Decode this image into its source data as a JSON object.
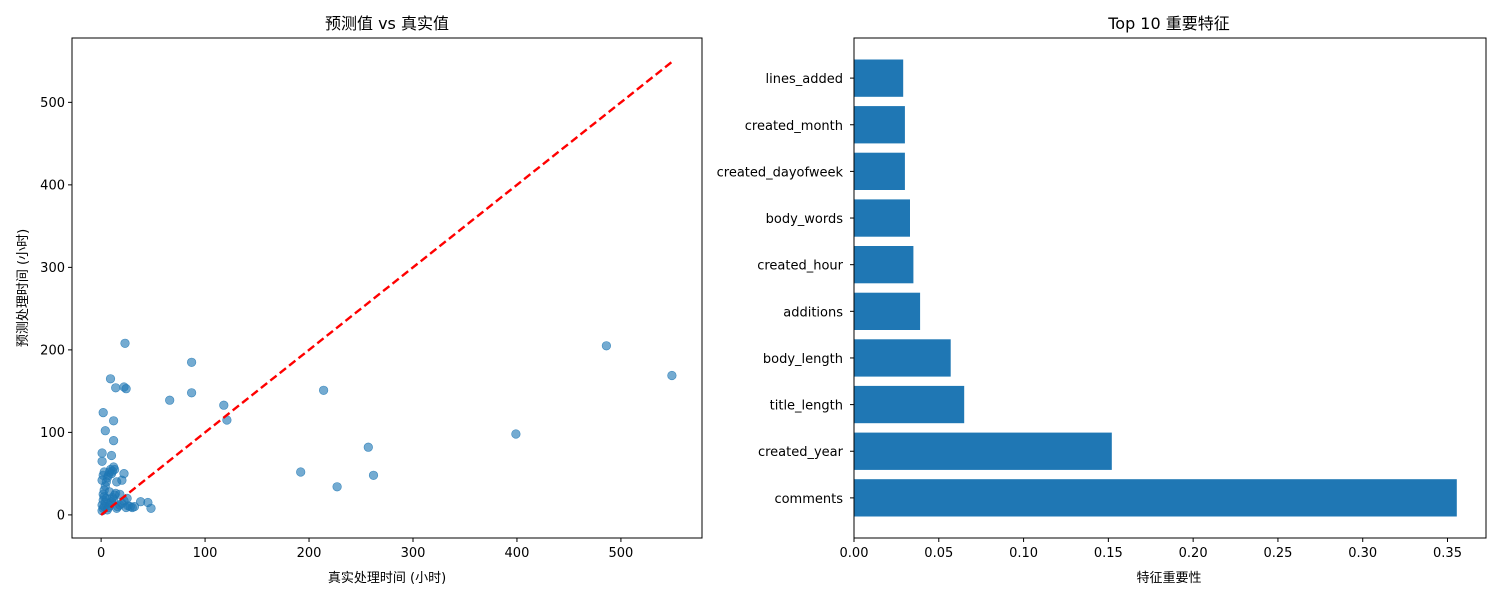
{
  "chart_data": [
    {
      "type": "scatter",
      "title": "预测值 vs 真实值",
      "xlabel": "真实处理时间 (小时)",
      "ylabel": "预测处理时间 (小时)",
      "xlim": [
        -28,
        578
      ],
      "ylim": [
        -28,
        578
      ],
      "xticks": [
        0,
        100,
        200,
        300,
        400,
        500
      ],
      "yticks": [
        0,
        100,
        200,
        300,
        400,
        500
      ],
      "grid": false,
      "colors": {
        "points": "#1f77b4",
        "reference_line": "#ff0000"
      },
      "series": [
        {
          "points": [
            [
              1,
              5
            ],
            [
              2,
              8
            ],
            [
              3,
              10
            ],
            [
              1,
              12
            ],
            [
              4,
              15
            ],
            [
              2,
              18
            ],
            [
              5,
              20
            ],
            [
              3,
              22
            ],
            [
              6,
              6
            ],
            [
              7,
              9
            ],
            [
              8,
              11
            ],
            [
              9,
              14
            ],
            [
              10,
              16
            ],
            [
              12,
              19
            ],
            [
              11,
              21
            ],
            [
              13,
              24
            ],
            [
              14,
              26
            ],
            [
              15,
              8
            ],
            [
              16,
              10
            ],
            [
              18,
              12
            ],
            [
              20,
              14
            ],
            [
              22,
              17
            ],
            [
              24,
              9
            ],
            [
              26,
              11
            ],
            [
              28,
              10
            ],
            [
              30,
              9
            ],
            [
              32,
              10
            ],
            [
              38,
              16
            ],
            [
              45,
              15
            ],
            [
              48,
              8
            ],
            [
              2,
              25
            ],
            [
              3,
              30
            ],
            [
              4,
              35
            ],
            [
              5,
              40
            ],
            [
              6,
              45
            ],
            [
              7,
              48
            ],
            [
              8,
              52
            ],
            [
              9,
              55
            ],
            [
              10,
              50
            ],
            [
              11,
              53
            ],
            [
              12,
              58
            ],
            [
              13,
              55
            ],
            [
              1,
              42
            ],
            [
              2,
              48
            ],
            [
              3,
              52
            ],
            [
              1,
              65
            ],
            [
              1,
              75
            ],
            [
              10,
              72
            ],
            [
              12,
              90
            ],
            [
              15,
              40
            ],
            [
              20,
              42
            ],
            [
              22,
              50
            ],
            [
              18,
              25
            ],
            [
              8,
              28
            ],
            [
              25,
              20
            ],
            [
              2,
              124
            ],
            [
              4,
              102
            ],
            [
              12,
              114
            ],
            [
              9,
              165
            ],
            [
              14,
              154
            ],
            [
              22,
              155
            ],
            [
              24,
              153
            ],
            [
              23,
              208
            ],
            [
              66,
              139
            ],
            [
              87,
              185
            ],
            [
              87,
              148
            ],
            [
              118,
              133
            ],
            [
              121,
              115
            ],
            [
              192,
              52
            ],
            [
              214,
              151
            ],
            [
              227,
              34
            ],
            [
              257,
              82
            ],
            [
              262,
              48
            ],
            [
              399,
              98
            ],
            [
              486,
              205
            ],
            [
              549,
              169
            ]
          ]
        }
      ],
      "reference_line": {
        "x": [
          0,
          550
        ],
        "y": [
          0,
          550
        ],
        "style": "dashed"
      }
    },
    {
      "type": "bar",
      "orientation": "horizontal",
      "title": "Top 10 重要特征",
      "xlabel": "特征重要性",
      "ylabel": "",
      "xlim": [
        0,
        0.3727
      ],
      "xticks": [
        "0.00",
        "0.05",
        "0.10",
        "0.15",
        "0.20",
        "0.25",
        "0.30",
        "0.35"
      ],
      "grid": false,
      "colors": {
        "bars": "#1f77b4"
      },
      "categories": [
        "comments",
        "created_year",
        "title_length",
        "body_length",
        "additions",
        "created_hour",
        "body_words",
        "created_dayofweek",
        "created_month",
        "lines_added"
      ],
      "values": [
        0.3555,
        0.152,
        0.065,
        0.057,
        0.039,
        0.035,
        0.033,
        0.03,
        0.03,
        0.029
      ]
    }
  ]
}
